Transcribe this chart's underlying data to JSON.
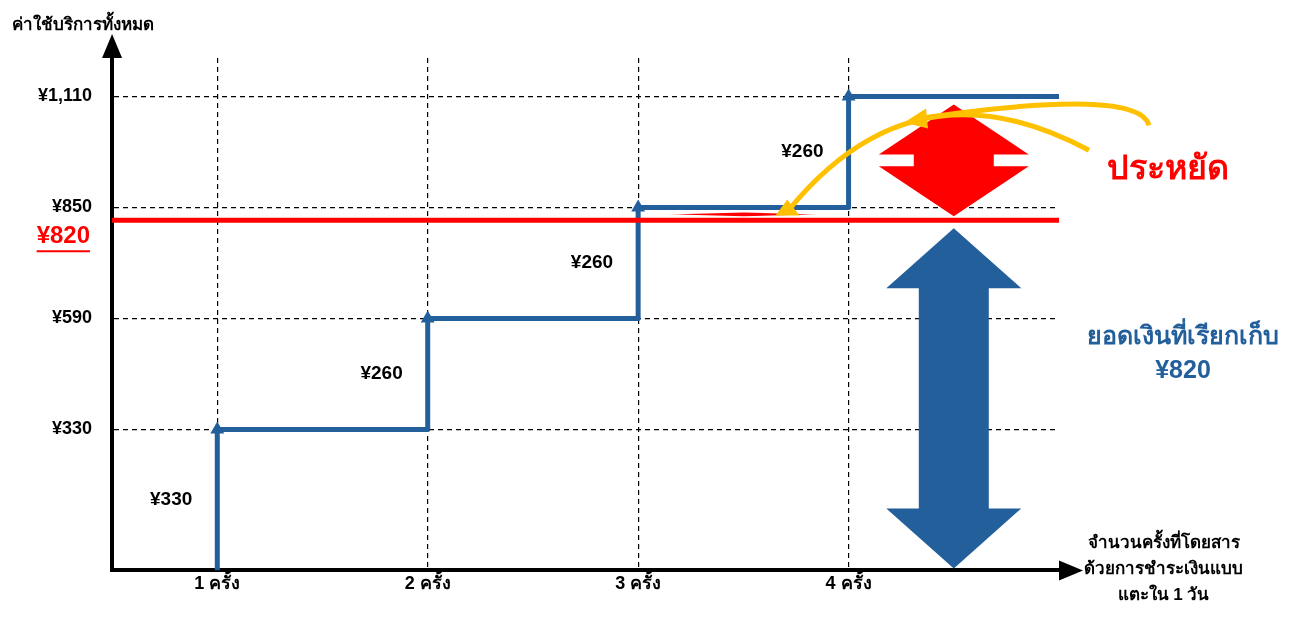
{
  "chart_data": {
    "type": "step",
    "xlabel": "จำนวนครั้งที่โดยสาร\nด้วยการชำระเงินแบบ\nแตะใน 1 วัน",
    "ylabel": "ค่าใช้บริการทั้งหมด",
    "xlim": [
      0.5,
      5
    ],
    "xticks": [
      {
        "value": 1,
        "label": "1 ครั้ง"
      },
      {
        "value": 2,
        "label": "2 ครั้ง"
      },
      {
        "value": 3,
        "label": "3 ครั้ง"
      },
      {
        "value": 4,
        "label": "4 ครั้ง"
      }
    ],
    "ylim": [
      0,
      1200
    ],
    "yticks": [
      {
        "value": 330,
        "label": "¥330"
      },
      {
        "value": 590,
        "label": "¥590"
      },
      {
        "value": 850,
        "label": "¥850"
      },
      {
        "value": 1110,
        "label": "¥1,110"
      }
    ],
    "grid": true,
    "marker": "triangle",
    "series": [
      {
        "color": "#235f9b",
        "x": [
          1,
          1,
          2,
          3,
          4,
          5
        ],
        "values": [
          0,
          330,
          590,
          850,
          1110,
          1110
        ]
      }
    ],
    "ref_lines": [
      {
        "axis": "y",
        "value": 820,
        "label": "¥820",
        "color": "#ff0000"
      }
    ],
    "annotations": [
      {
        "text": "¥330",
        "x": 1,
        "y": 165
      },
      {
        "text": "¥260",
        "x": 2,
        "y": 460
      },
      {
        "text": "¥260",
        "x": 3,
        "y": 720
      },
      {
        "text": "¥260",
        "x": 4,
        "y": 980
      },
      {
        "text": "ประหยัด",
        "x": 5,
        "y": 1110
      },
      "ยอดเงินที่เรียกเก็บ\n¥820"
    ]
  }
}
